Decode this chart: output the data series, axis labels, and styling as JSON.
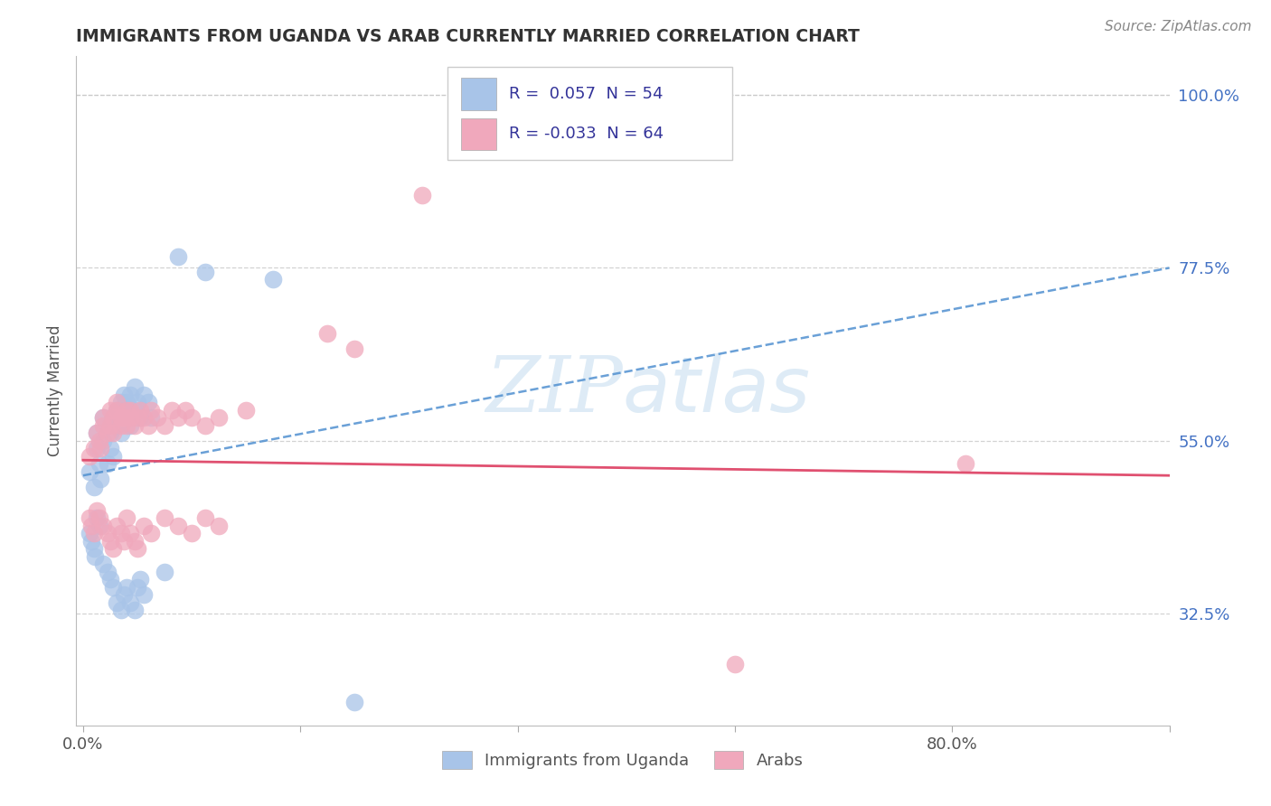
{
  "title": "IMMIGRANTS FROM UGANDA VS ARAB CURRENTLY MARRIED CORRELATION CHART",
  "source": "Source: ZipAtlas.com",
  "ylabel": "Currently Married",
  "x_min": 0.0,
  "x_max": 0.8,
  "y_min": 0.18,
  "y_max": 1.05,
  "y_ticks": [
    0.325,
    0.55,
    0.775,
    1.0
  ],
  "y_tick_labels": [
    "32.5%",
    "55.0%",
    "77.5%",
    "100.0%"
  ],
  "x_ticks": [
    0.0,
    0.8
  ],
  "x_tick_labels": [
    "0.0%",
    "80.0%"
  ],
  "legend_labels": [
    "Immigrants from Uganda",
    "Arabs"
  ],
  "r_uganda": 0.057,
  "n_uganda": 54,
  "r_arab": -0.033,
  "n_arab": 64,
  "blue_color": "#a8c4e8",
  "pink_color": "#f0a8bc",
  "blue_line_color": "#5090d0",
  "pink_line_color": "#e05070",
  "background_color": "#ffffff",
  "grid_color": "#c8c8c8",
  "watermark_color": "#c8dff0",
  "title_color": "#333333",
  "source_color": "#888888",
  "tick_color": "#4472c4",
  "uganda_x": [
    0.005,
    0.008,
    0.01,
    0.01,
    0.012,
    0.013,
    0.015,
    0.015,
    0.018,
    0.02,
    0.02,
    0.022,
    0.022,
    0.025,
    0.025,
    0.028,
    0.028,
    0.03,
    0.03,
    0.032,
    0.032,
    0.035,
    0.035,
    0.038,
    0.038,
    0.04,
    0.042,
    0.045,
    0.048,
    0.05,
    0.005,
    0.006,
    0.008,
    0.009,
    0.01,
    0.012,
    0.015,
    0.018,
    0.02,
    0.022,
    0.025,
    0.028,
    0.03,
    0.032,
    0.035,
    0.038,
    0.04,
    0.042,
    0.045,
    0.06,
    0.07,
    0.09,
    0.14,
    0.2
  ],
  "uganda_y": [
    0.51,
    0.49,
    0.56,
    0.54,
    0.52,
    0.5,
    0.58,
    0.55,
    0.52,
    0.56,
    0.54,
    0.58,
    0.53,
    0.57,
    0.59,
    0.6,
    0.56,
    0.61,
    0.58,
    0.59,
    0.6,
    0.61,
    0.57,
    0.62,
    0.59,
    0.6,
    0.58,
    0.61,
    0.6,
    0.58,
    0.43,
    0.42,
    0.41,
    0.4,
    0.45,
    0.44,
    0.39,
    0.38,
    0.37,
    0.36,
    0.34,
    0.33,
    0.35,
    0.36,
    0.34,
    0.33,
    0.36,
    0.37,
    0.35,
    0.38,
    0.79,
    0.77,
    0.76,
    0.21
  ],
  "arab_x": [
    0.005,
    0.008,
    0.01,
    0.012,
    0.013,
    0.015,
    0.015,
    0.018,
    0.02,
    0.02,
    0.022,
    0.022,
    0.025,
    0.025,
    0.028,
    0.028,
    0.03,
    0.032,
    0.032,
    0.035,
    0.035,
    0.038,
    0.04,
    0.042,
    0.045,
    0.048,
    0.05,
    0.055,
    0.06,
    0.065,
    0.07,
    0.075,
    0.08,
    0.09,
    0.1,
    0.12,
    0.005,
    0.006,
    0.008,
    0.01,
    0.012,
    0.015,
    0.018,
    0.02,
    0.022,
    0.025,
    0.028,
    0.03,
    0.032,
    0.035,
    0.038,
    0.04,
    0.045,
    0.05,
    0.06,
    0.07,
    0.08,
    0.09,
    0.1,
    0.18,
    0.2,
    0.25,
    0.48,
    0.65
  ],
  "arab_y": [
    0.53,
    0.54,
    0.56,
    0.55,
    0.54,
    0.57,
    0.58,
    0.56,
    0.59,
    0.57,
    0.58,
    0.56,
    0.59,
    0.6,
    0.58,
    0.57,
    0.58,
    0.59,
    0.57,
    0.58,
    0.59,
    0.57,
    0.58,
    0.59,
    0.58,
    0.57,
    0.59,
    0.58,
    0.57,
    0.59,
    0.58,
    0.59,
    0.58,
    0.57,
    0.58,
    0.59,
    0.45,
    0.44,
    0.43,
    0.46,
    0.45,
    0.44,
    0.43,
    0.42,
    0.41,
    0.44,
    0.43,
    0.42,
    0.45,
    0.43,
    0.42,
    0.41,
    0.44,
    0.43,
    0.45,
    0.44,
    0.43,
    0.45,
    0.44,
    0.69,
    0.67,
    0.87,
    0.26,
    0.52
  ]
}
